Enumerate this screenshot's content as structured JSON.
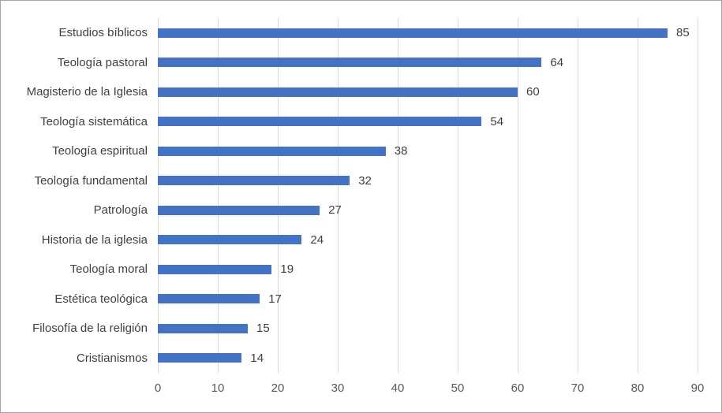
{
  "chart_data": {
    "type": "bar",
    "orientation": "horizontal",
    "title": "",
    "xlabel": "",
    "ylabel": "",
    "categories": [
      "Estudios bíblicos",
      "Teología pastoral",
      "Magisterio de la Iglesia",
      "Teología sistemática",
      "Teología espiritual",
      "Teología fundamental",
      "Patrología",
      "Historia de la iglesia",
      "Teología moral",
      "Estética teológica",
      "Filosofía de la religión",
      "Cristianismos"
    ],
    "values": [
      85,
      64,
      60,
      54,
      38,
      32,
      27,
      24,
      19,
      17,
      15,
      14
    ],
    "xlim": [
      0,
      90
    ],
    "xticks": [
      0,
      10,
      20,
      30,
      40,
      50,
      60,
      70,
      80,
      90
    ],
    "grid": true,
    "data_labels": true,
    "legend": false
  },
  "style": {
    "bar_color": "#4472C4",
    "gridline_color": "#D9D9D9",
    "label_color": "#404040",
    "tick_color": "#595959",
    "border_color": "#A6A6A6",
    "background": "#FFFFFF"
  }
}
